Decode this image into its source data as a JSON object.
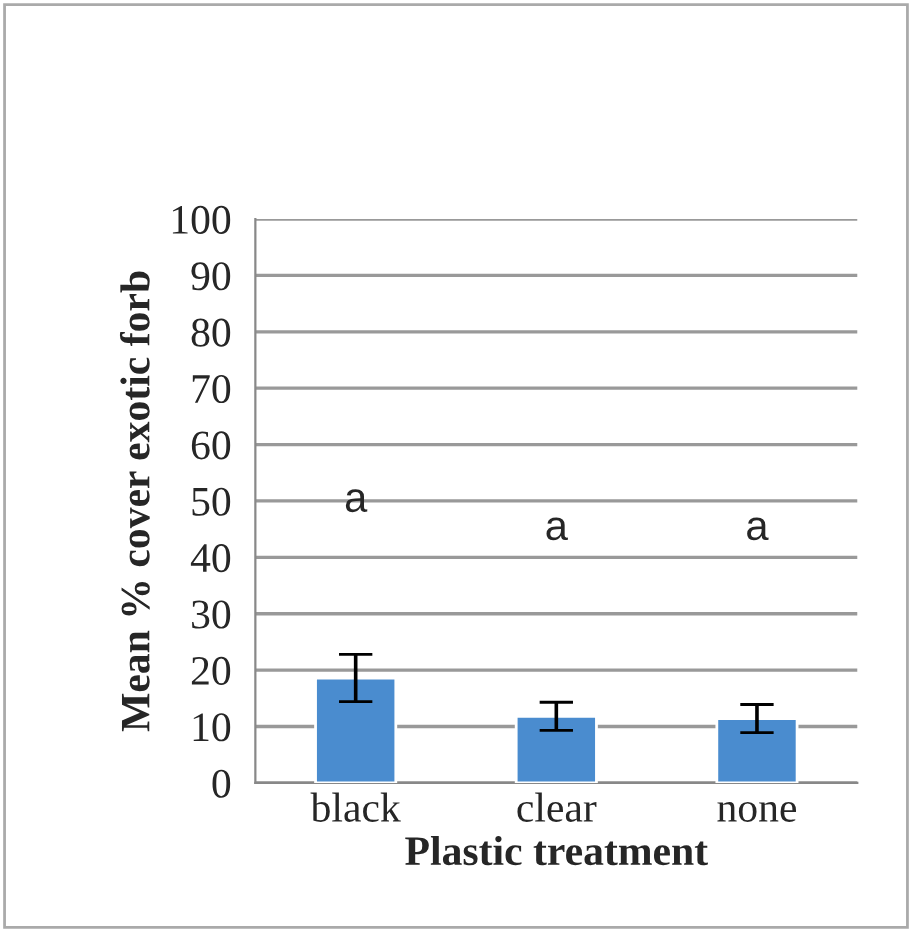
{
  "chart_data": {
    "type": "bar",
    "xlabel": "Plastic treatment",
    "ylabel": "Mean % cover exotic forb",
    "categories": [
      "black",
      "clear",
      "none"
    ],
    "values": [
      18.6,
      11.8,
      11.4
    ],
    "errors": [
      4.2,
      2.5,
      2.5
    ],
    "color": "#4a8ccf",
    "ylim": [
      0,
      100
    ],
    "yticks": [
      0,
      10,
      20,
      30,
      40,
      50,
      60,
      70,
      80,
      90,
      100
    ],
    "grid": "y",
    "annotations": [
      "a",
      "a",
      "a"
    ]
  }
}
